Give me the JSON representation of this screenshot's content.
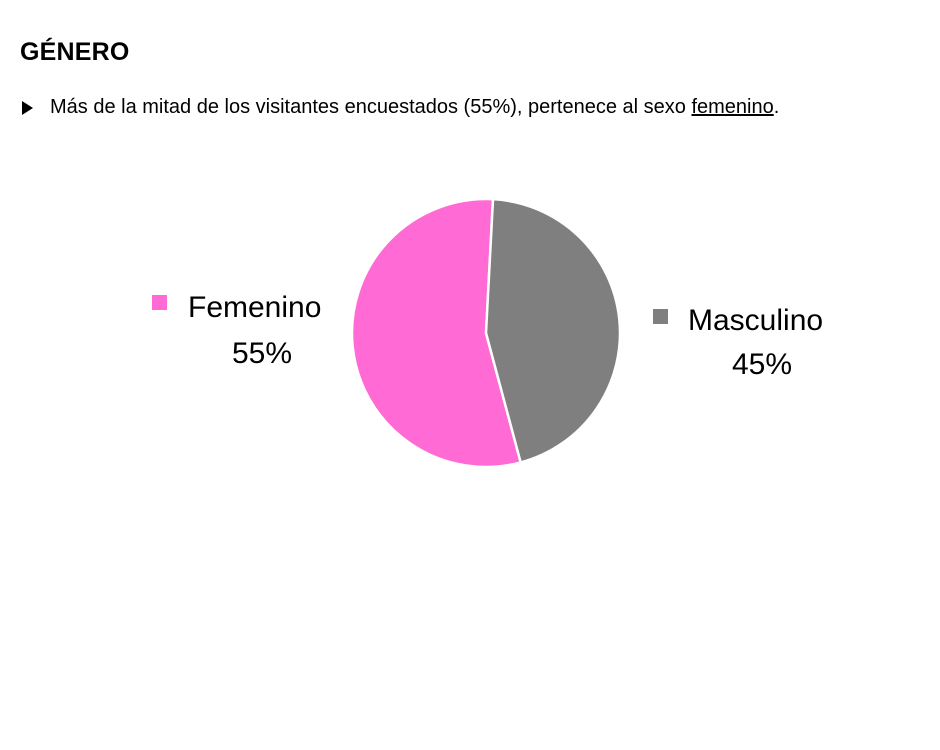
{
  "heading": "GÉNERO",
  "bullet": {
    "text_before": "Más de la mitad de los visitantes encuestados (55%), pertenece al sexo ",
    "underlined": "femenino",
    "text_after": "."
  },
  "chart_data": {
    "type": "pie",
    "title": "",
    "legend": "none",
    "slices": [
      {
        "name": "Femenino",
        "value": 55,
        "label": "55%",
        "color": "#FF6AD5"
      },
      {
        "name": "Masculino",
        "value": 45,
        "label": "45%",
        "color": "#7F7F7F"
      }
    ]
  }
}
